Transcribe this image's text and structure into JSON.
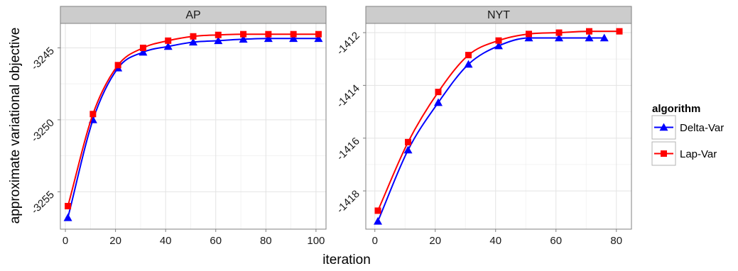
{
  "chart_data": {
    "type": "line",
    "xlabel": "iteration",
    "ylabel": "approximate variational objective",
    "legend": {
      "title": "algorithm",
      "placement": "right",
      "entries": [
        {
          "name": "Delta-Var",
          "color": "#0000ff",
          "marker": "triangle"
        },
        {
          "name": "Lap-Var",
          "color": "#ff0000",
          "marker": "square"
        }
      ]
    },
    "grid": true,
    "panels": [
      {
        "title": "AP",
        "xlim": [
          -2,
          104
        ],
        "ylim": [
          -3257.6,
          -3243.3
        ],
        "xticks": [
          0,
          20,
          40,
          60,
          80,
          100
        ],
        "yticks": [
          -3245,
          -3250,
          -3255
        ],
        "series": [
          {
            "name": "Delta-Var",
            "x": [
              1,
              11,
              21,
              31,
              41,
              51,
              61,
              71,
              81,
              91,
              101
            ],
            "y": [
              -3256.8,
              -3250.0,
              -3246.4,
              -3245.3,
              -3244.9,
              -3244.6,
              -3244.5,
              -3244.4,
              -3244.35,
              -3244.35,
              -3244.35
            ]
          },
          {
            "name": "Lap-Var",
            "x": [
              1,
              11,
              21,
              31,
              41,
              51,
              61,
              71,
              81,
              91,
              101
            ],
            "y": [
              -3256.0,
              -3249.6,
              -3246.2,
              -3245.0,
              -3244.5,
              -3244.2,
              -3244.1,
              -3244.05,
              -3244.05,
              -3244.05,
              -3244.05
            ]
          }
        ]
      },
      {
        "title": "NYT",
        "xlim": [
          -3,
          85
        ],
        "ylim": [
          -1419.45,
          -1411.65
        ],
        "xticks": [
          0,
          20,
          40,
          60,
          80
        ],
        "yticks": [
          -1412,
          -1414,
          -1416,
          -1418
        ],
        "series": [
          {
            "name": "Delta-Var",
            "x": [
              1,
              11,
              21,
              31,
              41,
              51,
              61,
              71,
              76
            ],
            "y": [
              -1419.15,
              -1416.45,
              -1414.65,
              -1413.2,
              -1412.5,
              -1412.2,
              -1412.2,
              -1412.2,
              -1412.2
            ]
          },
          {
            "name": "Lap-Var",
            "x": [
              1,
              11,
              21,
              31,
              41,
              51,
              61,
              71,
              81
            ],
            "y": [
              -1418.75,
              -1416.15,
              -1414.25,
              -1412.85,
              -1412.3,
              -1412.05,
              -1412.0,
              -1411.95,
              -1411.95
            ]
          }
        ]
      }
    ]
  }
}
